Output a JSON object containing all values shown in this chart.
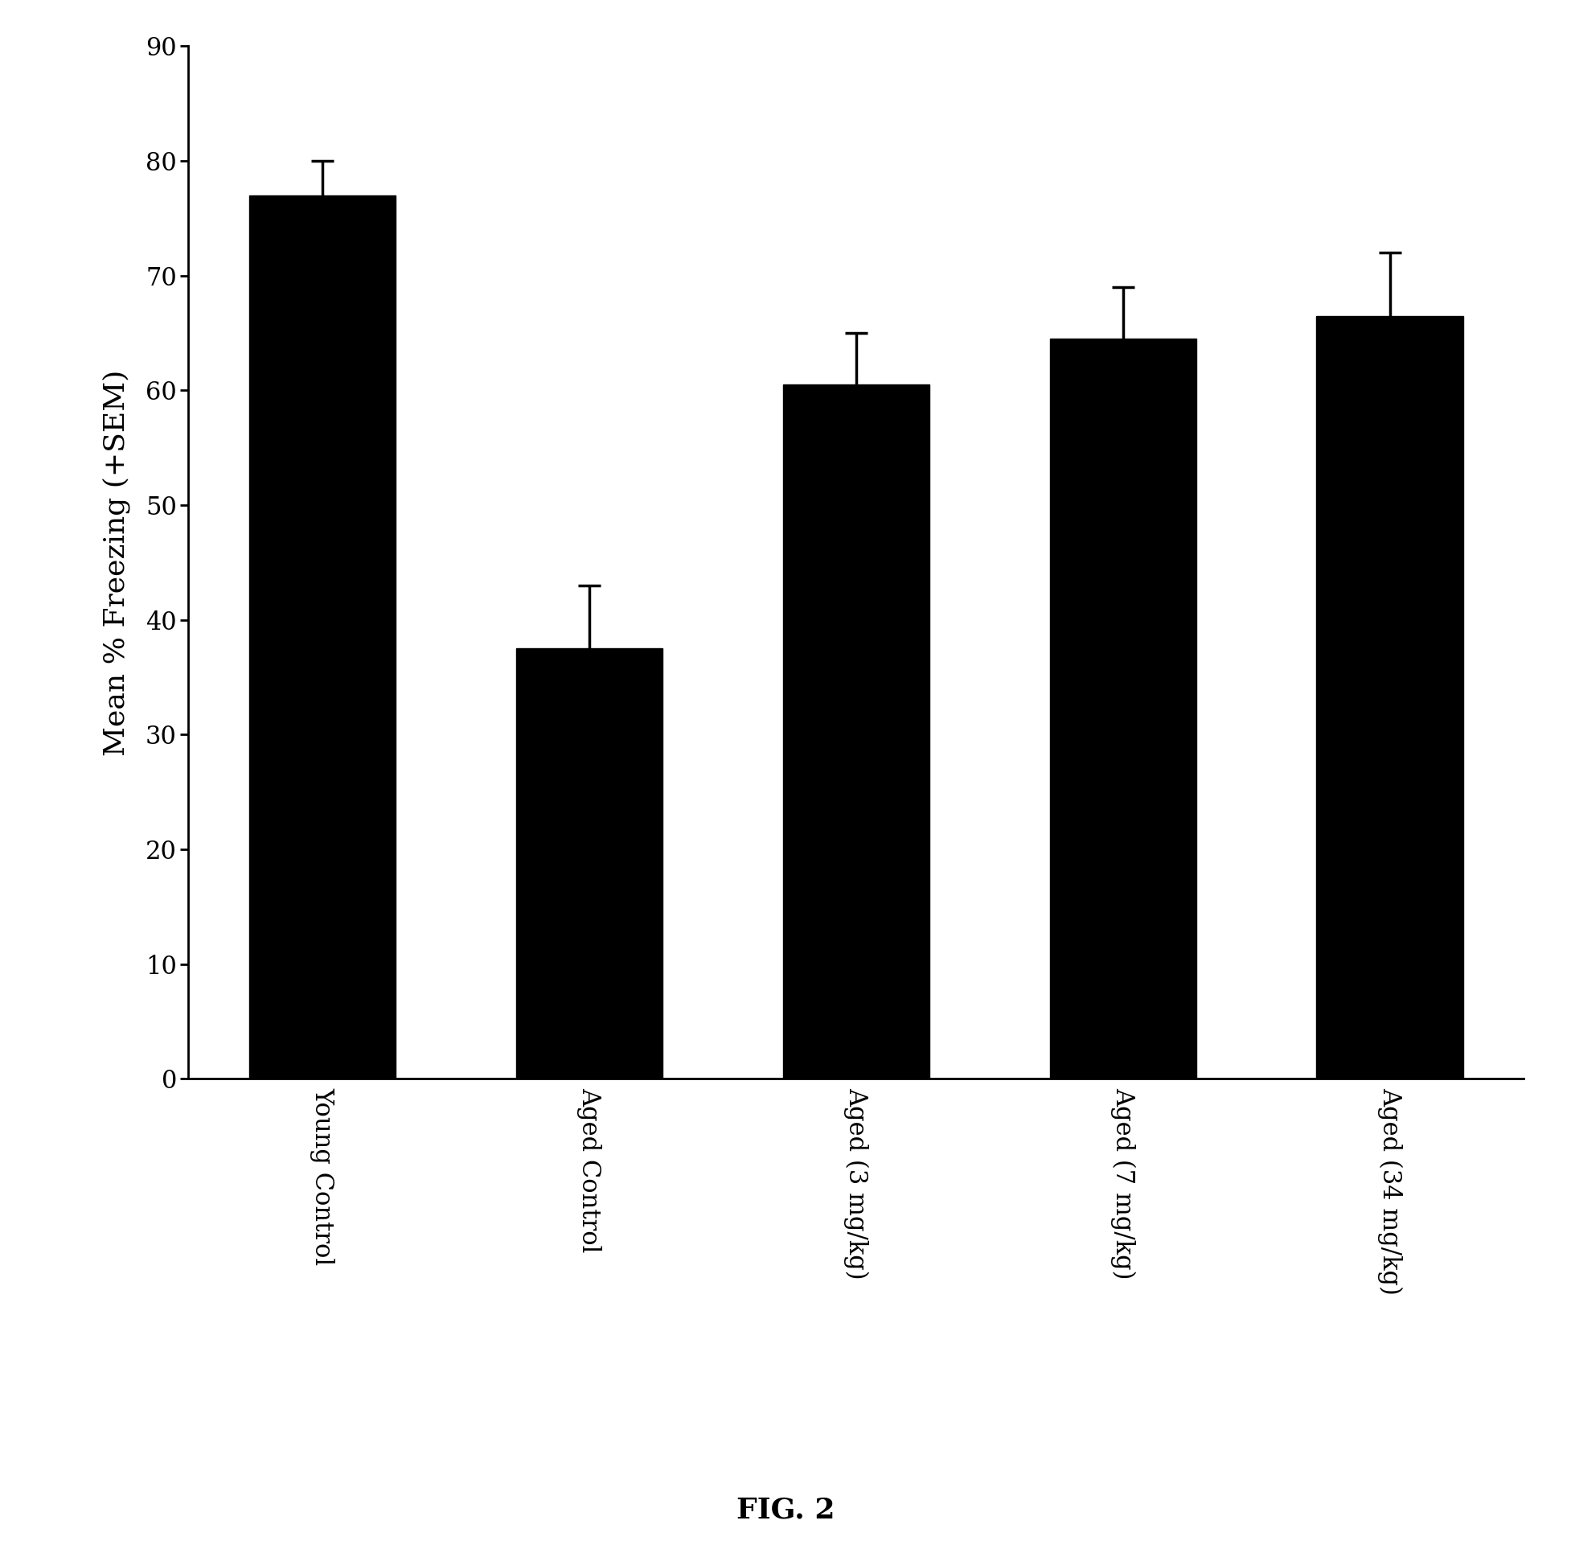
{
  "categories": [
    "Young Control",
    "Aged Control",
    "Aged (3 mg/kg)",
    "Aged (7 mg/kg)",
    "Aged (34 mg/kg)"
  ],
  "values": [
    77.0,
    37.5,
    60.5,
    64.5,
    66.5
  ],
  "errors": [
    3.0,
    5.5,
    4.5,
    4.5,
    5.5
  ],
  "bar_color": "#000000",
  "ylabel": "Mean % Freezing (+SEM)",
  "ylim": [
    0,
    90
  ],
  "yticks": [
    0,
    10,
    20,
    30,
    40,
    50,
    60,
    70,
    80,
    90
  ],
  "fig_label": "FIG. 2",
  "background_color": "#ffffff",
  "bar_width": 0.55,
  "ylabel_fontsize": 26,
  "tick_fontsize": 22,
  "fig_label_fontsize": 26
}
